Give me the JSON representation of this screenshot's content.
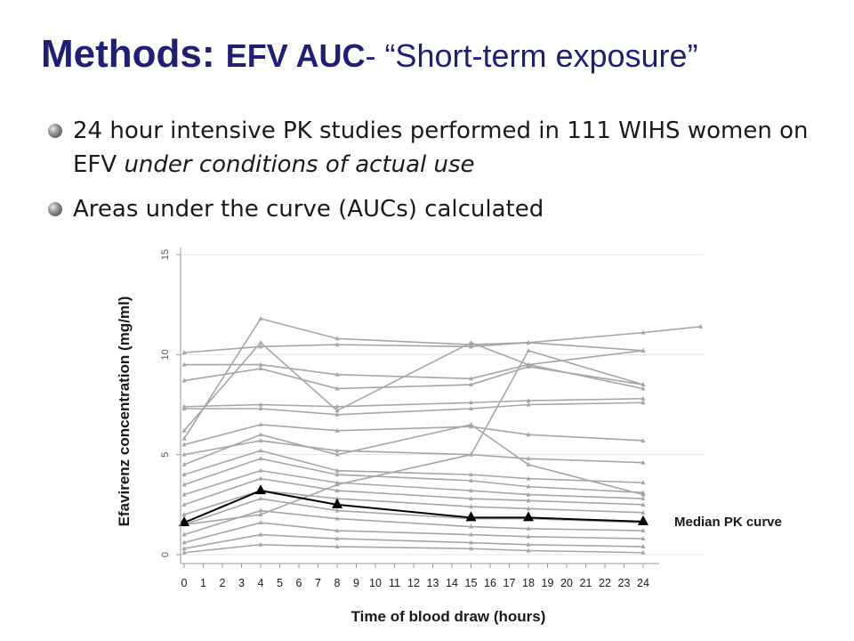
{
  "slide": {
    "title_part1": "Methods: ",
    "title_part2": "EFV AUC",
    "title_part3": "- “Short-term exposure”",
    "bullets": [
      {
        "text_a": "24 hour intensive PK studies performed in 111 WIHS women on EFV ",
        "text_em": "under conditions of actual use",
        "text_b": ""
      },
      {
        "text_a": "Areas under the curve (AUCs) calculated",
        "text_em": "",
        "text_b": ""
      }
    ],
    "colors": {
      "title": "#1f1f78",
      "individual_curves": "#a6a6a6",
      "median_curve": "#000000"
    }
  },
  "chart_data": {
    "type": "line",
    "xlabel": "Time of blood draw (hours)",
    "ylabel": "Efavirenz concentration (mg/ml)",
    "x_ticks": [
      0,
      1,
      2,
      3,
      4,
      5,
      6,
      7,
      8,
      9,
      10,
      11,
      12,
      13,
      14,
      15,
      16,
      17,
      18,
      19,
      20,
      21,
      22,
      23,
      24
    ],
    "y_ticks": [
      0,
      5,
      10,
      15
    ],
    "xlim": [
      0,
      27
    ],
    "ylim": [
      0,
      15
    ],
    "grid": "horizontal",
    "annotation": "Median PK curve",
    "median_series": {
      "x": [
        0,
        4,
        8,
        15,
        18,
        24
      ],
      "y": [
        1.6,
        3.2,
        2.5,
        1.85,
        1.85,
        1.65
      ]
    },
    "individual_series": [
      {
        "x": [
          0,
          4,
          8,
          15,
          18,
          24,
          27
        ],
        "y": [
          10.1,
          10.4,
          10.5,
          10.4,
          10.6,
          11.1,
          11.4
        ]
      },
      {
        "x": [
          0,
          4,
          8,
          15,
          18,
          24
        ],
        "y": [
          5.8,
          11.8,
          10.8,
          10.5,
          10.6,
          10.2
        ]
      },
      {
        "x": [
          0,
          4,
          8,
          15,
          18,
          24
        ],
        "y": [
          6.2,
          10.6,
          7.2,
          10.6,
          9.5,
          8.3
        ]
      },
      {
        "x": [
          0,
          4,
          8,
          15,
          18,
          24
        ],
        "y": [
          9.5,
          9.5,
          9.0,
          8.8,
          9.5,
          10.2
        ]
      },
      {
        "x": [
          0,
          4,
          8,
          15,
          18,
          24
        ],
        "y": [
          8.7,
          9.3,
          8.3,
          8.5,
          9.4,
          8.5
        ]
      },
      {
        "x": [
          0,
          4,
          8,
          15,
          18,
          24
        ],
        "y": [
          7.4,
          7.5,
          7.4,
          7.6,
          7.7,
          7.8
        ]
      },
      {
        "x": [
          0,
          4,
          8,
          15,
          18,
          24
        ],
        "y": [
          7.3,
          7.3,
          7.0,
          7.3,
          7.5,
          7.6
        ]
      },
      {
        "x": [
          0,
          4,
          8,
          15,
          18,
          24
        ],
        "y": [
          1.5,
          2.0,
          3.5,
          5.0,
          10.2,
          8.5
        ]
      },
      {
        "x": [
          0,
          4,
          8,
          15,
          18,
          24
        ],
        "y": [
          5.5,
          6.5,
          6.2,
          6.4,
          6.0,
          5.7
        ]
      },
      {
        "x": [
          0,
          4,
          8,
          15,
          18,
          24
        ],
        "y": [
          4.5,
          6.0,
          5.0,
          6.5,
          4.5,
          3.0
        ]
      },
      {
        "x": [
          0,
          4,
          8,
          15,
          18,
          24
        ],
        "y": [
          5.0,
          5.7,
          5.2,
          5.0,
          4.8,
          4.6
        ]
      },
      {
        "x": [
          0,
          4,
          8,
          15,
          18,
          24
        ],
        "y": [
          4.0,
          5.2,
          4.2,
          4.0,
          3.8,
          3.6
        ]
      },
      {
        "x": [
          0,
          4,
          8,
          15,
          18,
          24
        ],
        "y": [
          3.5,
          4.8,
          4.0,
          3.7,
          3.4,
          3.1
        ]
      },
      {
        "x": [
          0,
          4,
          8,
          15,
          18,
          24
        ],
        "y": [
          3.0,
          4.2,
          3.6,
          3.2,
          3.0,
          2.8
        ]
      },
      {
        "x": [
          0,
          4,
          8,
          15,
          18,
          24
        ],
        "y": [
          2.5,
          3.8,
          3.2,
          2.8,
          2.7,
          2.5
        ]
      },
      {
        "x": [
          0,
          4,
          8,
          15,
          18,
          24
        ],
        "y": [
          2.0,
          3.2,
          2.8,
          2.4,
          2.3,
          2.1
        ]
      },
      {
        "x": [
          0,
          4,
          8,
          15,
          18,
          24
        ],
        "y": [
          1.5,
          2.8,
          2.2,
          1.8,
          1.8,
          1.6
        ]
      },
      {
        "x": [
          0,
          4,
          8,
          15,
          18,
          24
        ],
        "y": [
          1.0,
          2.2,
          1.8,
          1.4,
          1.3,
          1.2
        ]
      },
      {
        "x": [
          0,
          4,
          8,
          15,
          18,
          24
        ],
        "y": [
          0.6,
          1.6,
          1.2,
          1.0,
          0.9,
          0.8
        ]
      },
      {
        "x": [
          0,
          4,
          8,
          15,
          18,
          24
        ],
        "y": [
          0.3,
          1.0,
          0.8,
          0.6,
          0.5,
          0.4
        ]
      },
      {
        "x": [
          0,
          4,
          8,
          15,
          18,
          24
        ],
        "y": [
          0.1,
          0.5,
          0.4,
          0.3,
          0.2,
          0.1
        ]
      }
    ]
  }
}
